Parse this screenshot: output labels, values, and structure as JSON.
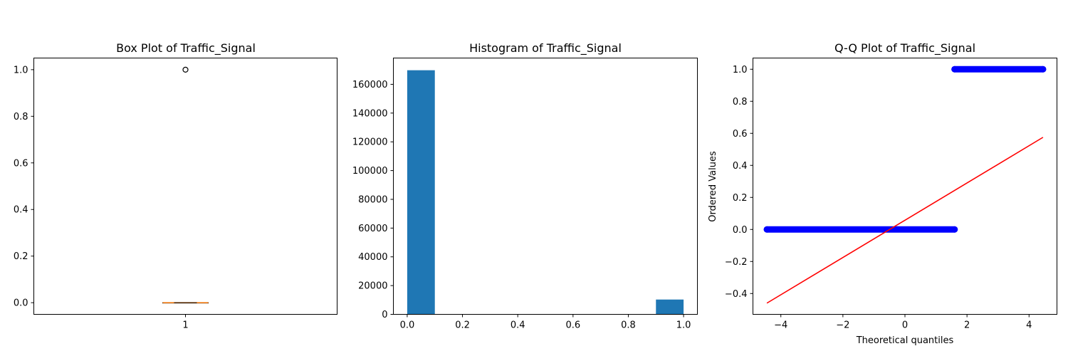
{
  "chart_data": [
    {
      "type": "box",
      "title": "Box Plot of Traffic_Signal",
      "xlabel": "",
      "ylabel": "",
      "categories": [
        "1"
      ],
      "box": {
        "q1": 0.0,
        "median": 0.0,
        "q3": 0.0,
        "whisker_low": 0.0,
        "whisker_high": 0.0,
        "outliers": [
          1.0
        ]
      },
      "ylim": [
        -0.05,
        1.05
      ],
      "yticks": [
        0.0,
        0.2,
        0.4,
        0.6,
        0.8,
        1.0
      ],
      "ytick_labels": [
        "0.0",
        "0.2",
        "0.4",
        "0.6",
        "0.8",
        "1.0"
      ],
      "colors": {
        "box": "#000000",
        "median": "#ff7f0e"
      },
      "grid": false
    },
    {
      "type": "bar",
      "title": "Histogram of Traffic_Signal",
      "xlabel": "",
      "ylabel": "",
      "bins": [
        {
          "x0": 0.0,
          "x1": 0.1,
          "count": 169800
        },
        {
          "x0": 0.1,
          "x1": 0.2,
          "count": 0
        },
        {
          "x0": 0.2,
          "x1": 0.3,
          "count": 0
        },
        {
          "x0": 0.3,
          "x1": 0.4,
          "count": 0
        },
        {
          "x0": 0.4,
          "x1": 0.5,
          "count": 0
        },
        {
          "x0": 0.5,
          "x1": 0.6,
          "count": 0
        },
        {
          "x0": 0.6,
          "x1": 0.7,
          "count": 0
        },
        {
          "x0": 0.7,
          "x1": 0.8,
          "count": 0
        },
        {
          "x0": 0.8,
          "x1": 0.9,
          "count": 0
        },
        {
          "x0": 0.9,
          "x1": 1.0,
          "count": 10300
        }
      ],
      "xlim": [
        -0.05,
        1.05
      ],
      "ylim": [
        0,
        178290
      ],
      "xticks": [
        0.0,
        0.2,
        0.4,
        0.6,
        0.8,
        1.0
      ],
      "xtick_labels": [
        "0.0",
        "0.2",
        "0.4",
        "0.6",
        "0.8",
        "1.0"
      ],
      "yticks": [
        0,
        20000,
        40000,
        60000,
        80000,
        100000,
        120000,
        140000,
        160000
      ],
      "ytick_labels": [
        "0",
        "20000",
        "40000",
        "60000",
        "80000",
        "100000",
        "120000",
        "140000",
        "160000"
      ],
      "colors": {
        "bar": "#1f77b4"
      },
      "grid": false
    },
    {
      "type": "scatter",
      "title": "Q-Q Plot of Traffic_Signal",
      "xlabel": "Theoretical quantiles",
      "ylabel": "Ordered Values",
      "series": [
        {
          "kind": "points",
          "segments": [
            {
              "x_from": -4.45,
              "x_to": 1.6,
              "y": 0.0
            },
            {
              "x_from": 1.6,
              "x_to": 4.45,
              "y": 1.0
            }
          ]
        },
        {
          "kind": "fit-line",
          "x": [
            -4.45,
            4.45
          ],
          "y": [
            -0.46,
            0.575
          ]
        }
      ],
      "xlim": [
        -4.9,
        4.9
      ],
      "ylim": [
        -0.53,
        1.07
      ],
      "xticks": [
        -4,
        -2,
        0,
        2,
        4
      ],
      "xtick_labels": [
        "−4",
        "−2",
        "0",
        "2",
        "4"
      ],
      "yticks": [
        -0.4,
        -0.2,
        0.0,
        0.2,
        0.4,
        0.6,
        0.8,
        1.0
      ],
      "ytick_labels": [
        "−0.4",
        "−0.2",
        "0.0",
        "0.2",
        "0.4",
        "0.6",
        "0.8",
        "1.0"
      ],
      "colors": {
        "points": "#0000ff",
        "line": "#ff0000"
      },
      "grid": false
    }
  ]
}
